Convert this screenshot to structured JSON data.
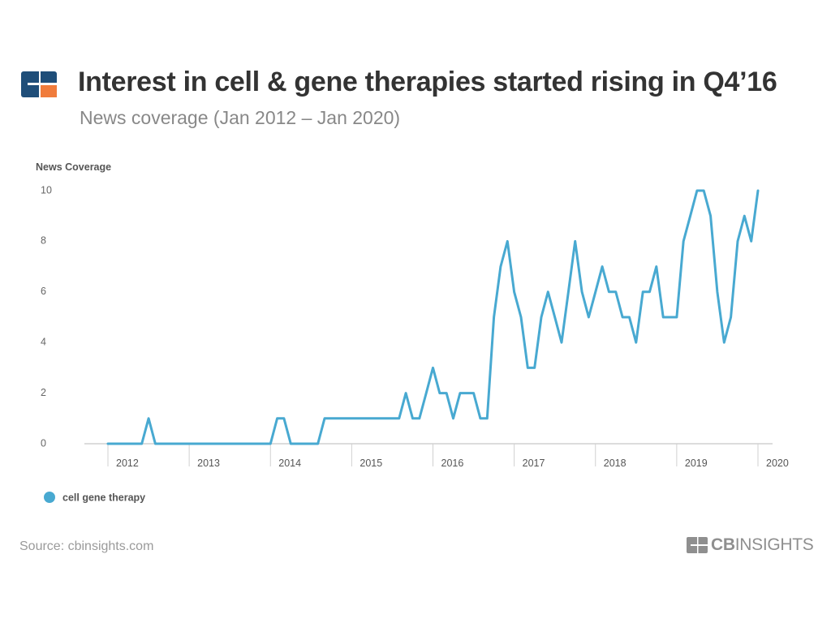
{
  "header": {
    "title": "Interest in cell & gene therapies started rising in Q4’16",
    "subtitle": "News coverage (Jan 2012 – Jan 2020)",
    "logo_icon": "cb-insights-logo-icon",
    "logo_colors": {
      "dark": "#1f4e79",
      "accent": "#f07c3c"
    }
  },
  "chart_data": {
    "type": "line",
    "ylabel": "News Coverage",
    "ylim": [
      0,
      10
    ],
    "yticks": [
      "0",
      "2",
      "4",
      "6",
      "8",
      "10"
    ],
    "xticks": [
      "2012",
      "2013",
      "2014",
      "2015",
      "2016",
      "2017",
      "2018",
      "2019",
      "2020"
    ],
    "grid": false,
    "legend_position": "bottom-left",
    "series": [
      {
        "name": "cell gene therapy",
        "color": "#48a9d1",
        "x": [
          "2012-01",
          "2012-02",
          "2012-03",
          "2012-04",
          "2012-05",
          "2012-06",
          "2012-07",
          "2012-08",
          "2012-09",
          "2012-10",
          "2012-11",
          "2012-12",
          "2013-01",
          "2013-02",
          "2013-03",
          "2013-04",
          "2013-05",
          "2013-06",
          "2013-07",
          "2013-08",
          "2013-09",
          "2013-10",
          "2013-11",
          "2013-12",
          "2014-01",
          "2014-02",
          "2014-03",
          "2014-04",
          "2014-05",
          "2014-06",
          "2014-07",
          "2014-08",
          "2014-09",
          "2014-10",
          "2014-11",
          "2014-12",
          "2015-01",
          "2015-02",
          "2015-03",
          "2015-04",
          "2015-05",
          "2015-06",
          "2015-07",
          "2015-08",
          "2015-09",
          "2015-10",
          "2015-11",
          "2015-12",
          "2016-01",
          "2016-02",
          "2016-03",
          "2016-04",
          "2016-05",
          "2016-06",
          "2016-07",
          "2016-08",
          "2016-09",
          "2016-10",
          "2016-11",
          "2016-12",
          "2017-01",
          "2017-02",
          "2017-03",
          "2017-04",
          "2017-05",
          "2017-06",
          "2017-07",
          "2017-08",
          "2017-09",
          "2017-10",
          "2017-11",
          "2017-12",
          "2018-01",
          "2018-02",
          "2018-03",
          "2018-04",
          "2018-05",
          "2018-06",
          "2018-07",
          "2018-08",
          "2018-09",
          "2018-10",
          "2018-11",
          "2018-12",
          "2019-01",
          "2019-02",
          "2019-03",
          "2019-04",
          "2019-05",
          "2019-06",
          "2019-07",
          "2019-08",
          "2019-09",
          "2019-10",
          "2019-11",
          "2019-12",
          "2020-01"
        ],
        "values": [
          0,
          0,
          0,
          0,
          0,
          0,
          1,
          0,
          0,
          0,
          0,
          0,
          0,
          0,
          0,
          0,
          0,
          0,
          0,
          0,
          0,
          0,
          0,
          0,
          0,
          1,
          1,
          0,
          0,
          0,
          0,
          0,
          1,
          1,
          1,
          1,
          1,
          1,
          1,
          1,
          1,
          1,
          1,
          1,
          2,
          1,
          1,
          2,
          3,
          2,
          2,
          1,
          2,
          2,
          2,
          1,
          1,
          5,
          7,
          8,
          6,
          5,
          3,
          3,
          5,
          6,
          5,
          4,
          6,
          8,
          6,
          5,
          6,
          7,
          6,
          6,
          5,
          5,
          4,
          6,
          6,
          7,
          5,
          5,
          5,
          8,
          9,
          10,
          10,
          9,
          6,
          4,
          5,
          8,
          9,
          8,
          10
        ]
      }
    ]
  },
  "footer": {
    "source": "Source: cbinsights.com",
    "brand_cb": "CB",
    "brand_insights": "INSIGHTS",
    "brand_icon": "cb-insights-mark-icon"
  }
}
